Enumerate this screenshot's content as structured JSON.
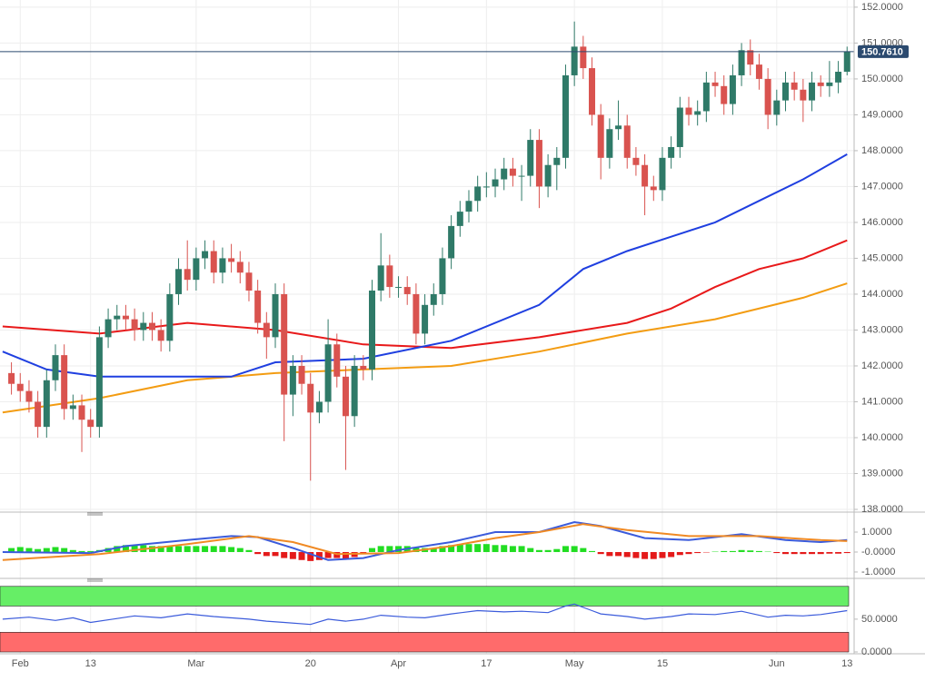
{
  "chart_data": [
    {
      "type": "candlestick",
      "xlim": [
        -1.3,
        95.8
      ],
      "ylim": [
        138,
        152.2
      ],
      "yticks": [
        {
          "value": 138,
          "label": "138.0000"
        },
        {
          "value": 139,
          "label": "139.0000"
        },
        {
          "value": 140,
          "label": "140.0000"
        },
        {
          "value": 141,
          "label": "141.0000"
        },
        {
          "value": 142,
          "label": "142.0000"
        },
        {
          "value": 143,
          "label": "143.0000"
        },
        {
          "value": 144,
          "label": "144.0000"
        },
        {
          "value": 145,
          "label": "145.0000"
        },
        {
          "value": 146,
          "label": "146.0000"
        },
        {
          "value": 147,
          "label": "147.0000"
        },
        {
          "value": 148,
          "label": "148.0000"
        },
        {
          "value": 149,
          "label": "149.0000"
        },
        {
          "value": 150,
          "label": "150.0000"
        },
        {
          "value": 151,
          "label": "151.0000"
        },
        {
          "value": 152,
          "label": "152.0000"
        }
      ],
      "xticks": [
        {
          "value": 1,
          "label": "Feb"
        },
        {
          "value": 9,
          "label": "13"
        },
        {
          "value": 21,
          "label": "Mar"
        },
        {
          "value": 34,
          "label": "20"
        },
        {
          "value": 44,
          "label": "Apr"
        },
        {
          "value": 54,
          "label": "17"
        },
        {
          "value": 64,
          "label": "May"
        },
        {
          "value": 74,
          "label": "15"
        },
        {
          "value": 87,
          "label": "Jun"
        },
        {
          "value": 95,
          "label": "13"
        }
      ],
      "grid": true,
      "up_color": "#2f7a68",
      "down_color": "#d9534f",
      "open": [
        141.8,
        141.5,
        141.3,
        141.0,
        140.3,
        141.6,
        142.3,
        140.8,
        140.9,
        140.5,
        140.3,
        142.8,
        143.3,
        143.4,
        143.3,
        143.0,
        143.2,
        143.0,
        142.7,
        144.0,
        144.7,
        144.4,
        145.0,
        145.2,
        144.6,
        145.0,
        144.9,
        144.6,
        144.1,
        143.2,
        142.8,
        144.0,
        141.2,
        142.0,
        141.5,
        140.7,
        141.0,
        142.6,
        141.7,
        140.6,
        142.0,
        141.9,
        144.1,
        144.8,
        144.2,
        144.2,
        144.0,
        142.9,
        143.7,
        144.0,
        145.0,
        145.9,
        146.3,
        146.6,
        147.0,
        147.0,
        147.2,
        147.5,
        147.3,
        147.3,
        148.3,
        147.0,
        147.6,
        147.8,
        150.1,
        150.9,
        150.3,
        149.0,
        147.8,
        148.6,
        148.7,
        147.8,
        147.6,
        147.0,
        146.9,
        147.8,
        148.1,
        149.2,
        149.0,
        149.1,
        149.9,
        149.8,
        149.3,
        150.1,
        150.8,
        150.4,
        150.0,
        149.0,
        149.4,
        149.9,
        149.7,
        149.4,
        149.9,
        149.8,
        149.9,
        150.2
      ],
      "high": [
        142.1,
        141.8,
        141.6,
        141.3,
        141.9,
        142.6,
        142.6,
        141.2,
        141.2,
        140.8,
        143.1,
        143.6,
        143.7,
        143.7,
        143.6,
        143.5,
        143.5,
        143.3,
        144.3,
        145.0,
        145.5,
        145.3,
        145.5,
        145.5,
        145.3,
        145.4,
        145.2,
        144.9,
        144.4,
        143.5,
        144.3,
        144.3,
        142.3,
        142.3,
        141.8,
        141.3,
        143.3,
        142.9,
        142.0,
        142.3,
        142.3,
        144.4,
        145.7,
        145.1,
        144.5,
        144.5,
        144.3,
        144.0,
        144.3,
        145.3,
        146.2,
        146.6,
        146.9,
        147.3,
        147.4,
        147.5,
        147.8,
        147.8,
        147.6,
        148.6,
        148.6,
        147.9,
        148.1,
        150.4,
        151.6,
        151.2,
        150.6,
        149.3,
        148.9,
        149.4,
        149.0,
        148.1,
        147.9,
        147.3,
        148.1,
        148.4,
        149.5,
        149.5,
        149.4,
        150.2,
        150.2,
        150.1,
        150.4,
        151.0,
        151.1,
        150.7,
        150.3,
        149.7,
        150.2,
        150.2,
        150.0,
        150.2,
        150.1,
        150.5,
        150.5,
        150.9
      ],
      "low": [
        141.2,
        141.0,
        140.7,
        140.0,
        140.0,
        141.3,
        140.5,
        140.5,
        139.6,
        140.0,
        140.0,
        142.5,
        143.0,
        143.0,
        142.7,
        142.7,
        142.7,
        142.4,
        142.4,
        143.7,
        144.1,
        144.1,
        144.7,
        144.3,
        144.3,
        144.6,
        144.3,
        143.8,
        142.9,
        142.2,
        142.5,
        139.9,
        140.6,
        141.2,
        138.8,
        140.4,
        140.7,
        141.4,
        139.1,
        140.3,
        141.6,
        141.6,
        143.8,
        143.9,
        143.9,
        143.7,
        142.6,
        142.6,
        143.4,
        143.7,
        144.7,
        145.6,
        146.0,
        146.3,
        146.7,
        146.7,
        146.9,
        147.0,
        146.6,
        147.0,
        146.4,
        146.7,
        146.9,
        147.5,
        149.8,
        150.0,
        148.7,
        147.2,
        147.5,
        148.3,
        147.5,
        147.3,
        146.2,
        146.6,
        146.6,
        147.5,
        147.8,
        148.7,
        148.7,
        148.8,
        149.5,
        149.0,
        149.0,
        149.8,
        150.1,
        149.7,
        148.6,
        148.7,
        149.1,
        149.4,
        148.8,
        149.1,
        149.5,
        149.5,
        149.6,
        150.1
      ],
      "close": [
        141.5,
        141.3,
        141.0,
        140.3,
        141.6,
        142.3,
        140.8,
        140.9,
        140.5,
        140.3,
        142.8,
        143.3,
        143.4,
        143.3,
        143.0,
        143.2,
        143.0,
        142.7,
        144.0,
        144.7,
        144.4,
        145.0,
        145.2,
        144.6,
        145.0,
        144.9,
        144.6,
        144.1,
        143.2,
        142.8,
        144.0,
        141.2,
        142.0,
        141.5,
        140.7,
        141.0,
        142.6,
        141.7,
        140.6,
        142.0,
        141.9,
        144.1,
        144.8,
        144.2,
        144.2,
        144.0,
        142.9,
        143.7,
        144.0,
        145.0,
        145.9,
        146.3,
        146.6,
        147.0,
        147.0,
        147.2,
        147.5,
        147.3,
        147.3,
        148.3,
        147.0,
        147.6,
        147.8,
        150.1,
        150.9,
        150.3,
        149.0,
        147.8,
        148.6,
        148.7,
        147.8,
        147.6,
        147.0,
        146.9,
        147.8,
        148.1,
        149.2,
        149.0,
        149.1,
        149.9,
        149.8,
        149.3,
        150.1,
        150.8,
        150.4,
        150.0,
        149.0,
        149.4,
        149.9,
        149.7,
        149.4,
        149.9,
        149.8,
        149.9,
        150.2,
        150.76
      ],
      "lines": [
        {
          "color": "#e8191a",
          "x": [
            -1,
            10,
            20,
            30,
            40,
            50,
            60,
            70,
            75,
            80,
            85,
            90,
            95
          ],
          "values": [
            143.1,
            142.9,
            143.2,
            143.0,
            142.6,
            142.5,
            142.8,
            143.2,
            143.6,
            144.2,
            144.7,
            145.0,
            145.5
          ]
        },
        {
          "color": "#f39c12",
          "x": [
            -1,
            10,
            20,
            30,
            40,
            50,
            60,
            70,
            80,
            90,
            95
          ],
          "values": [
            140.7,
            141.1,
            141.6,
            141.8,
            141.9,
            142.0,
            142.4,
            142.9,
            143.3,
            143.9,
            144.3
          ]
        },
        {
          "color": "#1f3fe0",
          "x": [
            -1,
            4,
            10,
            25,
            30,
            40,
            50,
            60,
            65,
            70,
            75,
            80,
            85,
            90,
            95
          ],
          "values": [
            142.4,
            141.9,
            141.7,
            141.7,
            142.1,
            142.2,
            142.7,
            143.7,
            144.7,
            145.2,
            145.6,
            146.0,
            146.6,
            147.2,
            147.9
          ]
        }
      ],
      "last_price": {
        "value": 150.761,
        "label": "150.7610",
        "color": "#2b4a6f"
      }
    },
    {
      "type": "macd",
      "ylim": [
        -1.23,
        1.82
      ],
      "yticks": [
        {
          "value": 1,
          "label": "1.0000"
        },
        {
          "value": 0,
          "label": "-0.0000"
        },
        {
          "value": -1,
          "label": "-1.0000"
        }
      ],
      "up_color": "#22dd22",
      "down_color": "#e41a1a",
      "histogram": [
        0.2,
        0.25,
        0.2,
        0.15,
        0.2,
        0.25,
        0.2,
        0.1,
        0.05,
        0.05,
        0.1,
        0.2,
        0.3,
        0.35,
        0.35,
        0.35,
        0.3,
        0.3,
        0.3,
        0.3,
        0.3,
        0.3,
        0.3,
        0.3,
        0.3,
        0.25,
        0.2,
        0.1,
        -0.1,
        -0.2,
        -0.2,
        -0.3,
        -0.35,
        -0.4,
        -0.45,
        -0.4,
        -0.3,
        -0.3,
        -0.35,
        -0.25,
        -0.1,
        0.2,
        0.3,
        0.3,
        0.3,
        0.3,
        0.25,
        0.2,
        0.2,
        0.3,
        0.35,
        0.4,
        0.4,
        0.4,
        0.4,
        0.35,
        0.35,
        0.3,
        0.3,
        0.2,
        0.1,
        0.1,
        0.15,
        0.3,
        0.3,
        0.2,
        0.05,
        -0.1,
        -0.2,
        -0.2,
        -0.25,
        -0.3,
        -0.35,
        -0.35,
        -0.3,
        -0.25,
        -0.15,
        -0.1,
        -0.05,
        -0.02,
        0.02,
        0.05,
        0.05,
        0.1,
        0.08,
        0.05,
        0.02,
        -0.05,
        -0.1,
        -0.1,
        -0.1,
        -0.1,
        -0.1,
        -0.08,
        -0.08,
        -0.05
      ],
      "lines": [
        {
          "color": "#3b5bdb",
          "x": [
            -1,
            9,
            13,
            20,
            25,
            28,
            32,
            36,
            40,
            44,
            50,
            55,
            60,
            64,
            67,
            72,
            77,
            83,
            88,
            92,
            95
          ],
          "values": [
            0.0,
            -0.05,
            0.3,
            0.6,
            0.8,
            0.75,
            0.2,
            -0.4,
            -0.3,
            0.1,
            0.5,
            1.0,
            1.0,
            1.5,
            1.3,
            0.7,
            0.6,
            0.9,
            0.6,
            0.5,
            0.6
          ]
        },
        {
          "color": "#f08a24",
          "x": [
            -1,
            10,
            20,
            27,
            32,
            37,
            44,
            50,
            55,
            60,
            65,
            70,
            77,
            85,
            92,
            95
          ],
          "values": [
            -0.4,
            -0.1,
            0.4,
            0.8,
            0.5,
            -0.1,
            -0.05,
            0.3,
            0.7,
            1.0,
            1.4,
            1.1,
            0.8,
            0.8,
            0.6,
            0.55
          ]
        }
      ]
    },
    {
      "type": "line",
      "ylim": [
        0,
        108
      ],
      "yticks": [
        {
          "value": 50,
          "label": "50.0000"
        },
        {
          "value": 0,
          "label": "0.0000"
        }
      ],
      "bands": [
        {
          "range": [
            70,
            100
          ],
          "color": "#66ee66"
        },
        {
          "range": [
            0,
            30
          ],
          "color": "#ff6b6b"
        }
      ],
      "color": "#3b5bdb",
      "x": [
        -1,
        2,
        5,
        7,
        9,
        12,
        14,
        17,
        20,
        23,
        27,
        29,
        31,
        34,
        36,
        38,
        40,
        42,
        45,
        47,
        50,
        53,
        56,
        58,
        61,
        63,
        64,
        66,
        67,
        70,
        72,
        75,
        77,
        80,
        83,
        86,
        88,
        90,
        92,
        95
      ],
      "values": [
        50,
        53,
        48,
        52,
        45,
        51,
        55,
        52,
        58,
        54,
        50,
        47,
        45,
        42,
        50,
        47,
        50,
        56,
        53,
        52,
        58,
        63,
        61,
        62,
        60,
        70,
        73,
        63,
        58,
        54,
        50,
        54,
        58,
        57,
        62,
        53,
        56,
        55,
        57,
        63
      ]
    }
  ]
}
